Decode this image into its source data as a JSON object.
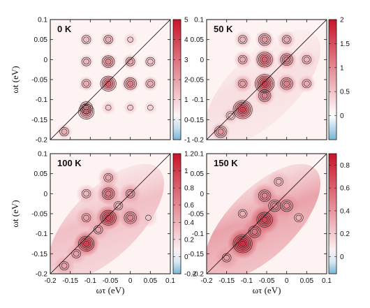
{
  "chart_data": [
    {
      "type": "heatmap",
      "title": "0 K",
      "xlim": [
        -0.2,
        0.1
      ],
      "ylim": [
        -0.2,
        0.1
      ],
      "x_ticks": [
        "-0.2",
        "-0.15",
        "-0.1",
        "-0.05",
        "0",
        "0.05",
        "0.1"
      ],
      "y_ticks": [
        "-0.2",
        "-0.15",
        "-0.1",
        "-0.05",
        "0",
        "0.05",
        "0.1"
      ],
      "xlabel": "",
      "ylabel": "ωt (eV)",
      "colorbar": {
        "min": -1,
        "max": 5,
        "ticks": [
          "-1",
          "0",
          "1",
          "2",
          "3",
          "4",
          "5"
        ]
      },
      "diagonal_line": true,
      "peaks": [
        {
          "x": -0.165,
          "y": -0.18,
          "amp": 2.0
        },
        {
          "x": -0.11,
          "y": -0.13,
          "amp": 3.5
        },
        {
          "x": -0.11,
          "y": -0.12,
          "amp": 2.5
        },
        {
          "x": -0.11,
          "y": -0.06,
          "amp": 2.0
        },
        {
          "x": -0.11,
          "y": -0.005,
          "amp": 1.8
        },
        {
          "x": -0.11,
          "y": 0.05,
          "amp": 1.6
        },
        {
          "x": -0.055,
          "y": -0.06,
          "amp": 4.0
        },
        {
          "x": -0.055,
          "y": -0.005,
          "amp": 3.0
        },
        {
          "x": -0.055,
          "y": 0.05,
          "amp": 2.0
        },
        {
          "x": -0.055,
          "y": -0.12,
          "amp": 1.4
        },
        {
          "x": 0.0,
          "y": -0.06,
          "amp": 3.2
        },
        {
          "x": 0.0,
          "y": -0.005,
          "amp": 2.2
        },
        {
          "x": 0.0,
          "y": 0.05,
          "amp": 1.3
        },
        {
          "x": 0.0,
          "y": -0.12,
          "amp": 1.3
        },
        {
          "x": 0.05,
          "y": -0.06,
          "amp": 2.0
        },
        {
          "x": 0.05,
          "y": -0.005,
          "amp": 1.5
        },
        {
          "x": 0.05,
          "y": -0.12,
          "amp": 1.1
        }
      ]
    },
    {
      "type": "heatmap",
      "title": "50 K",
      "xlim": [
        -0.2,
        0.1
      ],
      "ylim": [
        -0.2,
        0.1
      ],
      "x_ticks": [
        "-0.2",
        "-0.15",
        "-0.1",
        "-0.05",
        "0",
        "0.05",
        "0.1"
      ],
      "y_ticks": [
        "-0.2",
        "-0.15",
        "-0.1",
        "-0.05",
        "0",
        "0.05",
        "0.1"
      ],
      "xlabel": "",
      "ylabel": "",
      "colorbar": {
        "min": -0.5,
        "max": 2,
        "ticks": [
          "0",
          "0.5",
          "1",
          "1.5",
          "2"
        ]
      },
      "diagonal_line": true,
      "peaks": [
        {
          "x": -0.165,
          "y": -0.18,
          "amp": 1.0
        },
        {
          "x": -0.11,
          "y": -0.125,
          "amp": 1.8
        },
        {
          "x": -0.11,
          "y": -0.06,
          "amp": 0.9
        },
        {
          "x": -0.11,
          "y": 0.0,
          "amp": 0.8
        },
        {
          "x": -0.11,
          "y": 0.05,
          "amp": 0.7
        },
        {
          "x": -0.055,
          "y": -0.06,
          "amp": 1.8
        },
        {
          "x": -0.055,
          "y": -0.09,
          "amp": 1.2
        },
        {
          "x": -0.055,
          "y": 0.0,
          "amp": 1.5
        },
        {
          "x": -0.055,
          "y": 0.05,
          "amp": 1.0
        },
        {
          "x": 0.0,
          "y": -0.06,
          "amp": 1.2
        },
        {
          "x": 0.0,
          "y": 0.0,
          "amp": 1.2
        },
        {
          "x": 0.0,
          "y": 0.05,
          "amp": 0.8
        },
        {
          "x": 0.05,
          "y": -0.06,
          "amp": 0.8
        },
        {
          "x": 0.05,
          "y": 0.0,
          "amp": 0.7
        },
        {
          "x": -0.14,
          "y": -0.14,
          "amp": 0.6
        }
      ]
    },
    {
      "type": "heatmap",
      "title": "100 K",
      "xlim": [
        -0.2,
        0.1
      ],
      "ylim": [
        -0.2,
        0.1
      ],
      "x_ticks": [
        "-0.2",
        "-0.15",
        "-0.1",
        "-0.05",
        "0",
        "0.05",
        "0.1"
      ],
      "y_ticks": [
        "-0.2",
        "-0.15",
        "-0.1",
        "-0.05",
        "0",
        "0.05",
        "0.1"
      ],
      "xlabel": "ωτ (eV)",
      "ylabel": "ωt (eV)",
      "colorbar": {
        "min": -0.2,
        "max": 1.2,
        "ticks": [
          "-0.2",
          "0",
          "0.2",
          "0.4",
          "0.6",
          "0.8",
          "1",
          "1.2"
        ]
      },
      "diagonal_line": true,
      "peaks": [
        {
          "x": -0.165,
          "y": -0.18,
          "amp": 0.5
        },
        {
          "x": -0.11,
          "y": -0.125,
          "amp": 1.05
        },
        {
          "x": -0.135,
          "y": -0.15,
          "amp": 0.5
        },
        {
          "x": -0.11,
          "y": -0.06,
          "amp": 0.5
        },
        {
          "x": -0.11,
          "y": 0.0,
          "amp": 0.4
        },
        {
          "x": -0.055,
          "y": -0.06,
          "amp": 1.0
        },
        {
          "x": -0.055,
          "y": 0.0,
          "amp": 0.75
        },
        {
          "x": -0.055,
          "y": 0.04,
          "amp": 0.5
        },
        {
          "x": 0.0,
          "y": -0.06,
          "amp": 0.65
        },
        {
          "x": 0.0,
          "y": 0.0,
          "amp": 0.55
        },
        {
          "x": -0.08,
          "y": -0.09,
          "amp": 0.5
        },
        {
          "x": 0.045,
          "y": -0.06,
          "amp": 0.3
        },
        {
          "x": -0.03,
          "y": -0.03,
          "amp": 0.4
        }
      ]
    },
    {
      "type": "heatmap",
      "title": "150 K",
      "xlim": [
        -0.2,
        0.1
      ],
      "ylim": [
        -0.2,
        0.1
      ],
      "x_ticks": [
        "-0.2",
        "-0.15",
        "-0.1",
        "-0.05",
        "0",
        "0.05",
        "0.1"
      ],
      "y_ticks": [
        "-0.2",
        "-0.15",
        "-0.1",
        "-0.05",
        "0",
        "0.05",
        "0.1"
      ],
      "xlabel": "ωτ (eV)",
      "ylabel": "",
      "colorbar": {
        "min": -0.15,
        "max": 0.9,
        "ticks": [
          "0",
          "0.2",
          "0.4",
          "0.6",
          "0.8"
        ]
      },
      "diagonal_line": true,
      "peaks": [
        {
          "x": -0.11,
          "y": -0.125,
          "amp": 0.85
        },
        {
          "x": -0.15,
          "y": -0.16,
          "amp": 0.4
        },
        {
          "x": -0.055,
          "y": -0.065,
          "amp": 0.75
        },
        {
          "x": -0.08,
          "y": -0.095,
          "amp": 0.55
        },
        {
          "x": -0.055,
          "y": -0.005,
          "amp": 0.5
        },
        {
          "x": 0.0,
          "y": -0.03,
          "amp": 0.45
        },
        {
          "x": -0.11,
          "y": -0.05,
          "amp": 0.3
        },
        {
          "x": -0.03,
          "y": -0.03,
          "amp": 0.45
        },
        {
          "x": 0.03,
          "y": -0.06,
          "amp": 0.3
        },
        {
          "x": -0.02,
          "y": 0.03,
          "amp": 0.3
        }
      ]
    }
  ]
}
